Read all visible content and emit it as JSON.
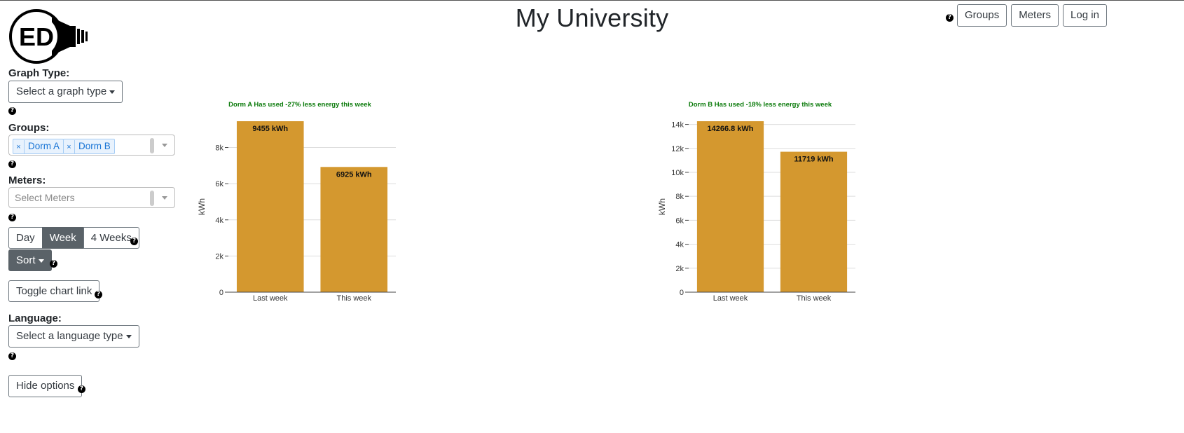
{
  "header": {
    "title": "My University",
    "logo_text": "ED",
    "nav": [
      {
        "label": "Groups"
      },
      {
        "label": "Meters"
      },
      {
        "label": "Log in"
      }
    ]
  },
  "sidebar": {
    "graph_type": {
      "label": "Graph Type:",
      "button": "Select a graph type"
    },
    "groups": {
      "label": "Groups:",
      "selected": [
        "Dorm A",
        "Dorm B"
      ],
      "remove_glyph": "×"
    },
    "meters": {
      "label": "Meters:",
      "placeholder": "Select Meters"
    },
    "interval": {
      "options": [
        "Day",
        "Week",
        "4 Weeks"
      ],
      "selected": "Week"
    },
    "sort": {
      "label": "Sort"
    },
    "toggle_link": {
      "label": "Toggle chart link"
    },
    "language": {
      "label": "Language:",
      "button": "Select a language type"
    },
    "hide_options": {
      "label": "Hide options"
    },
    "help_glyph": "?"
  },
  "colors": {
    "bar": "#d4982f",
    "title_green": "#0a7a0a",
    "dark_button": "#5a6268"
  },
  "chart_data": [
    {
      "type": "bar",
      "title": "Dorm A Has used -27% less energy this week",
      "categories": [
        "Last week",
        "This week"
      ],
      "values": [
        9455,
        6925
      ],
      "data_labels": [
        "9455 kWh",
        "6925 kWh"
      ],
      "ylabel": "kWh",
      "ylim": [
        0,
        9455
      ],
      "yticks": [
        0,
        2000,
        4000,
        6000,
        8000
      ],
      "ytick_labels": [
        "0",
        "2k",
        "4k",
        "6k",
        "8k"
      ],
      "grid": true
    },
    {
      "type": "bar",
      "title": "Dorm B Has used -18% less energy this week",
      "categories": [
        "Last week",
        "This week"
      ],
      "values": [
        14266.8,
        11719
      ],
      "data_labels": [
        "14266.8 kWh",
        "11719 kWh"
      ],
      "ylabel": "kWh",
      "ylim": [
        0,
        14266.8
      ],
      "yticks": [
        0,
        2000,
        4000,
        6000,
        8000,
        10000,
        12000,
        14000
      ],
      "ytick_labels": [
        "0",
        "2k",
        "4k",
        "6k",
        "8k",
        "10k",
        "12k",
        "14k"
      ],
      "grid": true
    }
  ]
}
